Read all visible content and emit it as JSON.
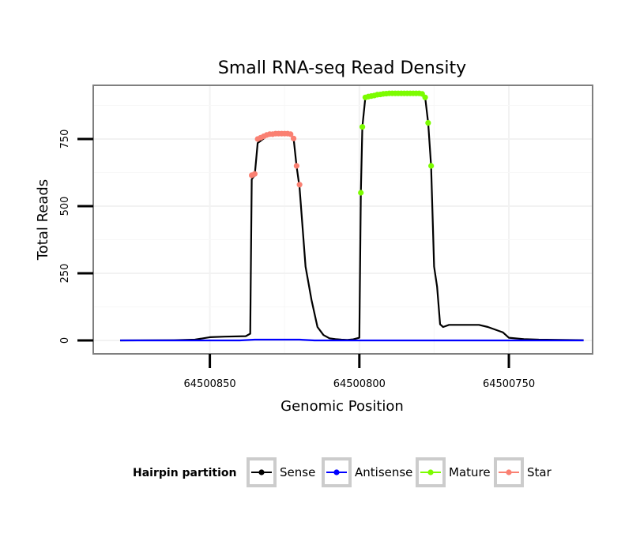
{
  "chart_data": {
    "type": "line",
    "title": "Small RNA-seq Read Density",
    "xlabel": "Genomic Position",
    "ylabel": "Total Reads",
    "x_reversed": true,
    "xlim": [
      64500889,
      64500722
    ],
    "ylim": [
      -50,
      950
    ],
    "x_ticks": [
      64500850,
      64500800,
      64500750
    ],
    "x_tick_labels": [
      "64500850",
      "64500800",
      "64500750"
    ],
    "y_ticks": [
      0,
      250,
      500,
      750
    ],
    "y_tick_labels": [
      "0",
      "250",
      "500",
      "750"
    ],
    "grid": true,
    "legend": {
      "title": "Hairpin partition",
      "position": "bottom",
      "entries": [
        {
          "name": "Sense",
          "color": "#000000"
        },
        {
          "name": "Antisense",
          "color": "#0000ff"
        },
        {
          "name": "Mature",
          "color": "#7cfc00"
        },
        {
          "name": "Star",
          "color": "#fa8072"
        }
      ]
    },
    "series": [
      {
        "name": "Sense",
        "color": "#000000",
        "x": [
          64500880,
          64500862,
          64500855,
          64500850,
          64500845,
          64500838,
          64500836.5,
          64500836,
          64500835,
          64500834,
          64500831,
          64500829,
          64500828,
          64500827,
          64500826,
          64500825,
          64500824,
          64500823,
          64500822,
          64500821,
          64500820,
          64500818,
          64500816,
          64500814,
          64500812,
          64500810,
          64500808,
          64500806,
          64500804,
          64500802,
          64500800,
          64500799.5,
          64500799,
          64500798,
          64500797,
          64500796,
          64500794,
          64500792,
          64500790,
          64500788,
          64500786,
          64500784,
          64500782,
          64500780,
          64500778,
          64500777,
          64500776,
          64500775,
          64500774,
          64500773,
          64500772,
          64500770,
          64500760,
          64500757,
          64500752,
          64500750,
          64500745,
          64500740,
          64500725
        ],
        "y": [
          0,
          1,
          3,
          12,
          14,
          16,
          25,
          600,
          615,
          735,
          760,
          768,
          770,
          770,
          770,
          770,
          770,
          768,
          752,
          650,
          570,
          275,
          150,
          50,
          20,
          8,
          5,
          3,
          2,
          4,
          10,
          550,
          795,
          905,
          910,
          915,
          918,
          920,
          920,
          920,
          920,
          920,
          920,
          920,
          905,
          810,
          650,
          275,
          200,
          60,
          50,
          58,
          58,
          50,
          30,
          10,
          5,
          3,
          1
        ]
      },
      {
        "name": "Antisense",
        "color": "#0000ff",
        "x": [
          64500880,
          64500840,
          64500835,
          64500820,
          64500815,
          64500810,
          64500725
        ],
        "y": [
          0,
          0,
          3,
          3,
          0,
          0,
          0
        ]
      },
      {
        "name": "Mature",
        "color": "#7cfc00",
        "x": [
          64500799.5,
          64500799,
          64500798,
          64500797,
          64500796,
          64500795,
          64500794,
          64500793,
          64500792,
          64500791,
          64500790,
          64500789,
          64500788,
          64500787,
          64500786,
          64500785,
          64500784,
          64500783,
          64500782,
          64500781,
          64500780,
          64500779,
          64500778,
          64500777,
          64500776
        ],
        "y": [
          550,
          795,
          905,
          908,
          910,
          912,
          915,
          916,
          918,
          919,
          920,
          920,
          920,
          920,
          920,
          920,
          920,
          920,
          920,
          920,
          920,
          918,
          905,
          810,
          650
        ]
      },
      {
        "name": "Star",
        "color": "#fa8072",
        "x": [
          64500836,
          64500835,
          64500834,
          64500833,
          64500832,
          64500831,
          64500830,
          64500829,
          64500828,
          64500827,
          64500826,
          64500825,
          64500824,
          64500823,
          64500822,
          64500821,
          64500820
        ],
        "y": [
          615,
          620,
          750,
          755,
          760,
          765,
          768,
          768,
          770,
          770,
          770,
          770,
          770,
          768,
          752,
          650,
          580
        ]
      }
    ]
  }
}
